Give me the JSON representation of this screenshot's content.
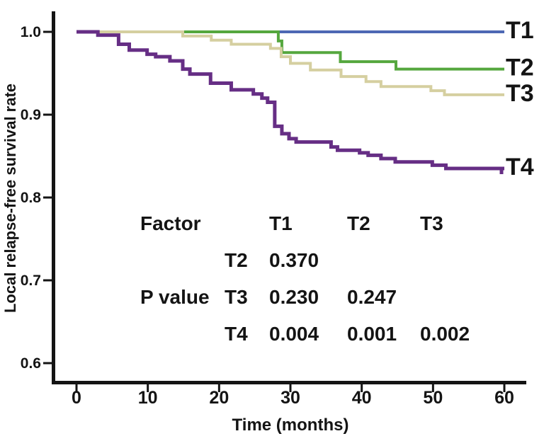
{
  "chart_data": {
    "type": "line",
    "subtype": "kaplan_meier_step",
    "title": "",
    "xlabel": "Time (months)",
    "ylabel": "Local relapse-free survival rate",
    "xlim": [
      0,
      60
    ],
    "ylim": [
      0.58,
      1.02
    ],
    "x_ticks": [
      0,
      10,
      20,
      30,
      40,
      50,
      60
    ],
    "y_ticks": [
      {
        "value": 1.0,
        "label": "1.0"
      },
      {
        "value": 0.9,
        "label": "0.9"
      },
      {
        "value": 0.8,
        "label": "0.8"
      },
      {
        "value": 0.7,
        "label": "0.7"
      },
      {
        "value": 0.6,
        "label": "0.6"
      }
    ],
    "grid": false,
    "legend_position": "end-of-line-labels",
    "axis_color": "#141414",
    "series": [
      {
        "name": "T1",
        "label": "T1",
        "color": "#4d68b4",
        "line_width": 4,
        "end_value": 1.0,
        "censor_tick_at_end": false,
        "steps": [
          [
            0,
            1.0
          ],
          [
            60,
            1.0
          ]
        ]
      },
      {
        "name": "T2",
        "label": "T2",
        "color": "#55a73e",
        "line_width": 4,
        "end_value": 0.955,
        "censor_tick_at_end": false,
        "steps": [
          [
            0,
            1.0
          ],
          [
            28.3,
            0.989
          ],
          [
            28.8,
            0.975
          ],
          [
            37.0,
            0.964
          ],
          [
            44.8,
            0.955
          ],
          [
            60,
            0.955
          ]
        ]
      },
      {
        "name": "T3",
        "label": "T3",
        "color": "#d5cfa0",
        "line_width": 4,
        "end_value": 0.924,
        "censor_tick_at_end": false,
        "steps": [
          [
            0,
            1.0
          ],
          [
            14.9,
            0.995
          ],
          [
            18.9,
            0.99
          ],
          [
            21.7,
            0.985
          ],
          [
            27.2,
            0.98
          ],
          [
            28.7,
            0.97
          ],
          [
            30.0,
            0.962
          ],
          [
            32.8,
            0.954
          ],
          [
            37.1,
            0.946
          ],
          [
            40.6,
            0.94
          ],
          [
            42.7,
            0.934
          ],
          [
            49.7,
            0.929
          ],
          [
            51.6,
            0.924
          ],
          [
            60,
            0.924
          ]
        ]
      },
      {
        "name": "T4",
        "label": "T4",
        "color": "#662e85",
        "line_width": 5,
        "end_value": 0.835,
        "censor_tick_at_end": true,
        "steps": [
          [
            0,
            1.0
          ],
          [
            3.0,
            0.996
          ],
          [
            5.9,
            0.985
          ],
          [
            7.4,
            0.978
          ],
          [
            9.9,
            0.973
          ],
          [
            11.1,
            0.97
          ],
          [
            13.1,
            0.965
          ],
          [
            14.9,
            0.955
          ],
          [
            15.9,
            0.949
          ],
          [
            18.8,
            0.938
          ],
          [
            21.7,
            0.93
          ],
          [
            24.8,
            0.925
          ],
          [
            26.0,
            0.92
          ],
          [
            26.8,
            0.915
          ],
          [
            27.8,
            0.886
          ],
          [
            28.8,
            0.877
          ],
          [
            29.8,
            0.871
          ],
          [
            30.8,
            0.867
          ],
          [
            35.7,
            0.861
          ],
          [
            36.6,
            0.857
          ],
          [
            39.7,
            0.854
          ],
          [
            40.9,
            0.851
          ],
          [
            42.7,
            0.847
          ],
          [
            44.7,
            0.843
          ],
          [
            49.9,
            0.839
          ],
          [
            51.8,
            0.835
          ],
          [
            60,
            0.835
          ]
        ]
      }
    ],
    "p_value_table": {
      "corner_label": "Factor",
      "row_group_label": "P value",
      "columns": [
        "T1",
        "T2",
        "T3"
      ],
      "rows": [
        {
          "factor": "T2",
          "values": [
            "0.370",
            "",
            ""
          ]
        },
        {
          "factor": "T3",
          "values": [
            "0.230",
            "0.247",
            ""
          ]
        },
        {
          "factor": "T4",
          "values": [
            "0.004",
            "0.001",
            "0.002"
          ]
        }
      ]
    }
  }
}
